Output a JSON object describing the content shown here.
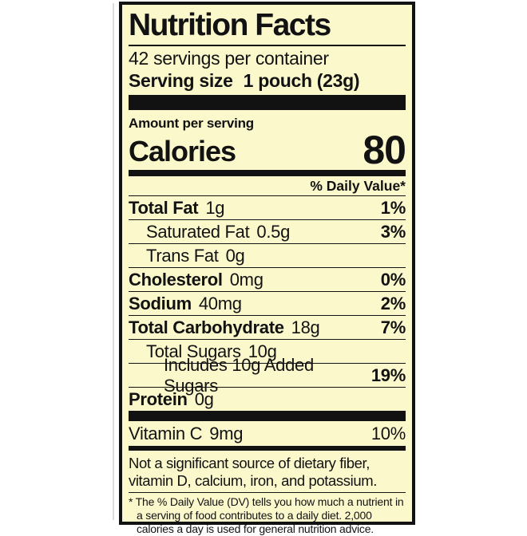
{
  "label": {
    "title": "Nutrition Facts",
    "servings_per_container": "42 servings per container",
    "serving_size": {
      "label": "Serving size",
      "value": "1 pouch (23g)"
    },
    "amount_per_serving": "Amount per serving",
    "calories": {
      "label": "Calories",
      "value": "80"
    },
    "daily_value_header": "% Daily Value*",
    "rows": [
      {
        "name": "Total Fat",
        "amount": "1g",
        "dv": "1%"
      },
      {
        "name": "Saturated Fat",
        "amount": "0.5g",
        "dv": "3%"
      },
      {
        "name": "Trans Fat",
        "amount": "0g",
        "dv": ""
      },
      {
        "name": "Cholesterol",
        "amount": "0mg",
        "dv": "0%"
      },
      {
        "name": "Sodium",
        "amount": "40mg",
        "dv": "2%"
      },
      {
        "name": "Total Carbohydrate",
        "amount": "18g",
        "dv": "7%"
      },
      {
        "name": "Total Sugars",
        "amount": "10g",
        "dv": ""
      },
      {
        "name": "Includes 10g Added Sugars",
        "amount": "",
        "dv": "19%"
      },
      {
        "name": "Protein",
        "amount": "0g",
        "dv": ""
      }
    ],
    "micronutrients": [
      {
        "name": "Vitamin C",
        "amount": "9mg",
        "dv": "10%"
      }
    ],
    "not_significant_note": "Not a significant source of dietary fiber, vitamin D, calcium, iron, and potassium.",
    "footnote": "* The % Daily Value (DV) tells you how much a nutrient in a serving of food contributes to a daily diet. 2,000 calories a day is used for general nutrition advice.",
    "colors": {
      "background": "#fbf8cc",
      "ink": "#121212"
    }
  }
}
